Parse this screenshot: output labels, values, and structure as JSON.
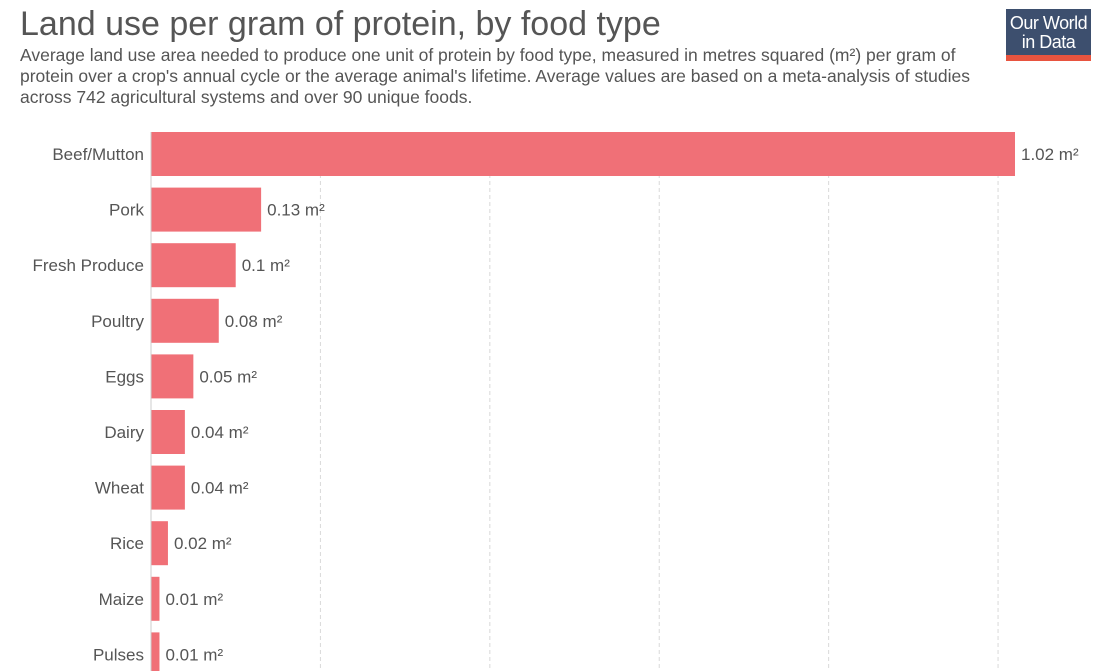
{
  "header": {
    "title": "Land use per gram of protein, by food type",
    "subtitle": "Average land use area needed to produce one unit of protein by food type, measured in metres squared (m²) per gram of protein over a crop's annual cycle or the average animal's lifetime. Average values are based on a meta-analysis of studies across 742 agricultural systems and over 90 unique foods."
  },
  "logo": {
    "line1": "Our World",
    "line2": "in Data"
  },
  "colors": {
    "bar": "#f07077",
    "grid": "#d9d9d9",
    "axis": "#cccccc"
  },
  "chart_data": {
    "type": "bar",
    "orientation": "horizontal",
    "title": "Land use per gram of protein, by food type",
    "unit": "m²",
    "categories": [
      "Beef/Mutton",
      "Pork",
      "Fresh Produce",
      "Poultry",
      "Eggs",
      "Dairy",
      "Wheat",
      "Rice",
      "Maize",
      "Pulses"
    ],
    "values": [
      1.02,
      0.13,
      0.1,
      0.08,
      0.05,
      0.04,
      0.04,
      0.02,
      0.01,
      0.01
    ],
    "value_labels": [
      "1.02 m²",
      "0.13 m²",
      "0.1 m²",
      "0.08 m²",
      "0.05 m²",
      "0.04 m²",
      "0.04 m²",
      "0.02 m²",
      "0.01 m²",
      "0.01 m²"
    ],
    "xlim": [
      0,
      1.02
    ],
    "grid": true,
    "legend": "none"
  }
}
